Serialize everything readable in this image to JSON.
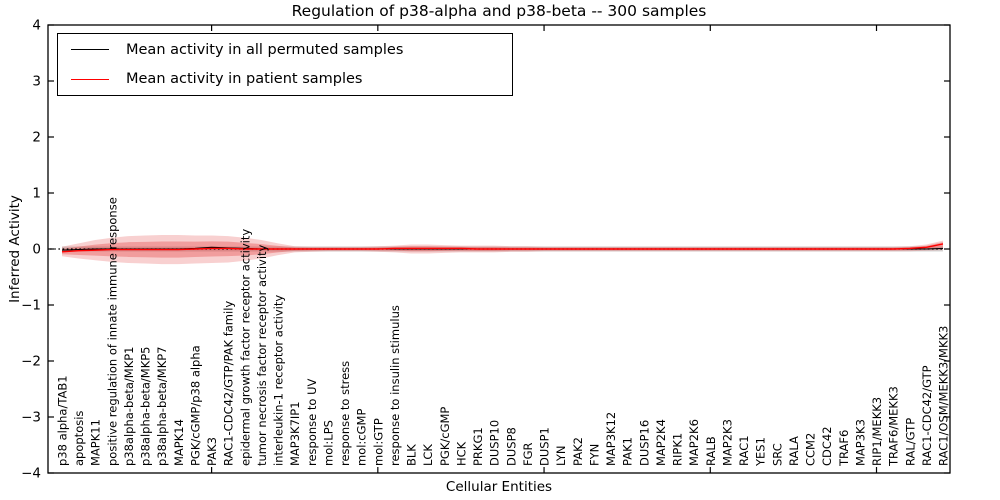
{
  "legend": {
    "items": [
      {
        "label": "Mean activity in all permuted samples",
        "color": "#000000"
      },
      {
        "label": "Mean activity in patient samples",
        "color": "#ff0000"
      }
    ]
  },
  "chart_data": {
    "type": "line",
    "title": "Regulation of p38-alpha and p38-beta -- 300 samples",
    "xlabel": "Cellular Entities",
    "ylabel": "Inferred Activity",
    "ylim": [
      -4,
      4
    ],
    "yticks": [
      -4,
      -3,
      -2,
      -1,
      0,
      1,
      2,
      3,
      4
    ],
    "grid": false,
    "legend_position": "upper left",
    "categories": [
      "p38 alpha/TAB1",
      "apoptosis",
      "MAPK11",
      "positive regulation of innate immune response",
      "p38alpha-beta/MKP1",
      "p38alpha-beta/MKP5",
      "p38alpha-beta/MKP7",
      "MAPK14",
      "PGK/cGMP/p38 alpha",
      "PAK3",
      "RAC1-CDC42/GTP/PAK family",
      "epidermal growth factor receptor activity",
      "tumor necrosis factor receptor activity",
      "interleukin-1 receptor activity",
      "MAP3K7IP1",
      "response to UV",
      "mol:LPS",
      "response to stress",
      "mol:cGMP",
      "mol:GTP",
      "response to insulin stimulus",
      "BLK",
      "LCK",
      "PGK/cGMP",
      "HCK",
      "PRKG1",
      "DUSP10",
      "DUSP8",
      "FGR",
      "DUSP1",
      "LYN",
      "PAK2",
      "FYN",
      "MAP3K12",
      "PAK1",
      "DUSP16",
      "MAP2K4",
      "RIPK1",
      "MAP2K6",
      "RALB",
      "MAP2K3",
      "RAC1",
      "YES1",
      "SRC",
      "RALA",
      "CCM2",
      "CDC42",
      "TRAF6",
      "MAP3K3",
      "RIP1/MEKK3",
      "TRAF6/MEKK3",
      "RAL/GTP",
      "RAC1-CDC42/GTP",
      "RAC1/OSM/MEKK3/MKK3"
    ],
    "series": [
      {
        "name": "Mean activity in all permuted samples",
        "color": "#000000",
        "values": [
          -0.02,
          -0.01,
          0,
          0,
          0,
          0,
          0,
          0,
          0.01,
          0.03,
          0.02,
          0.01,
          0,
          0,
          0,
          0,
          0,
          0,
          0,
          0,
          0,
          0,
          0,
          0,
          0,
          0,
          0,
          0,
          0,
          0,
          0,
          0,
          0,
          0,
          0,
          0,
          0,
          0,
          0,
          0,
          0,
          0,
          0,
          0,
          0,
          0,
          0,
          0,
          0,
          0,
          0,
          0,
          0,
          0.01
        ]
      },
      {
        "name": "Mean activity in patient samples",
        "color": "#ff0000",
        "values": [
          -0.05,
          -0.03,
          -0.02,
          -0.01,
          -0.01,
          -0.01,
          -0.01,
          -0.01,
          0,
          0.01,
          0.01,
          0,
          0,
          0,
          0,
          0,
          0,
          0,
          0,
          0,
          0.01,
          0.01,
          0.01,
          0.01,
          0.01,
          0,
          0,
          0,
          0,
          0,
          0,
          0,
          0,
          0,
          0,
          0,
          0,
          0,
          0,
          0,
          0,
          0,
          0,
          0,
          0,
          0,
          0,
          0,
          0,
          0,
          0,
          0.01,
          0.03,
          0.09
        ]
      }
    ],
    "bands": {
      "patient_std": {
        "color": "rgba(225,40,40,0.22)",
        "inner_color": "rgba(225,40,40,0.30)",
        "upper": [
          0.04,
          0.1,
          0.16,
          0.2,
          0.23,
          0.24,
          0.25,
          0.25,
          0.24,
          0.24,
          0.23,
          0.2,
          0.16,
          0.1,
          0.05,
          0.04,
          0.04,
          0.04,
          0.04,
          0.05,
          0.06,
          0.08,
          0.08,
          0.07,
          0.06,
          0.06,
          0.06,
          0.05,
          0.05,
          0.04,
          0.04,
          0.04,
          0.04,
          0.04,
          0.04,
          0.04,
          0.04,
          0.04,
          0.04,
          0.04,
          0.04,
          0.04,
          0.04,
          0.04,
          0.04,
          0.04,
          0.04,
          0.04,
          0.04,
          0.04,
          0.04,
          0.05,
          0.08,
          0.15
        ],
        "lower": [
          -0.13,
          -0.17,
          -0.2,
          -0.23,
          -0.25,
          -0.26,
          -0.27,
          -0.27,
          -0.26,
          -0.25,
          -0.24,
          -0.21,
          -0.17,
          -0.11,
          -0.06,
          -0.05,
          -0.04,
          -0.04,
          -0.04,
          -0.05,
          -0.06,
          -0.08,
          -0.08,
          -0.07,
          -0.06,
          -0.06,
          -0.06,
          -0.05,
          -0.05,
          -0.04,
          -0.04,
          -0.04,
          -0.04,
          -0.04,
          -0.04,
          -0.04,
          -0.04,
          -0.04,
          -0.04,
          -0.04,
          -0.04,
          -0.04,
          -0.04,
          -0.04,
          -0.04,
          -0.04,
          -0.04,
          -0.04,
          -0.04,
          -0.04,
          -0.04,
          -0.04,
          -0.03,
          -0.02
        ]
      },
      "permuted_std": {
        "color": "rgba(0,0,0,0.16)",
        "upper_const": 0.045,
        "lower_const": -0.045
      }
    },
    "zero_line": {
      "value": 0,
      "color": "#000000",
      "style": "dotted"
    }
  }
}
